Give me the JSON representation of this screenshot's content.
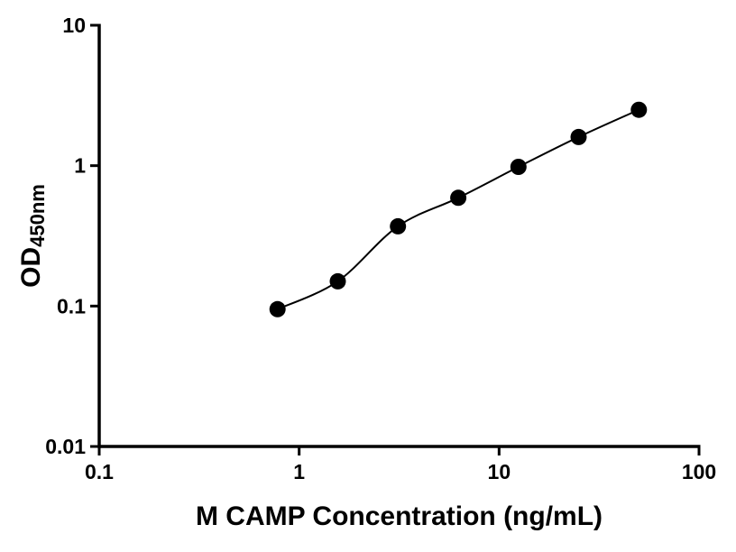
{
  "chart_data": {
    "type": "scatter",
    "title": "",
    "xlabel": "M CAMP Concentration (ng/mL)",
    "ylabel_main": "OD",
    "ylabel_sub": "450nm",
    "x_scale": "log",
    "y_scale": "log",
    "xlim": [
      0.1,
      100
    ],
    "ylim": [
      0.01,
      10
    ],
    "grid": false,
    "legend": "none",
    "line_color": "#000000",
    "marker_color": "#000000",
    "x_ticks": [
      {
        "value": 0.1,
        "label": "0.1"
      },
      {
        "value": 1,
        "label": "1"
      },
      {
        "value": 10,
        "label": "10"
      },
      {
        "value": 100,
        "label": "100"
      }
    ],
    "y_ticks": [
      {
        "value": 0.01,
        "label": "0.01"
      },
      {
        "value": 0.1,
        "label": "0.1"
      },
      {
        "value": 1,
        "label": "1"
      },
      {
        "value": 10,
        "label": "10"
      }
    ],
    "points": [
      {
        "x": 0.78,
        "y": 0.095
      },
      {
        "x": 1.56,
        "y": 0.15
      },
      {
        "x": 3.12,
        "y": 0.37
      },
      {
        "x": 6.25,
        "y": 0.59
      },
      {
        "x": 12.5,
        "y": 0.98
      },
      {
        "x": 25,
        "y": 1.6
      },
      {
        "x": 50,
        "y": 2.5
      }
    ]
  }
}
